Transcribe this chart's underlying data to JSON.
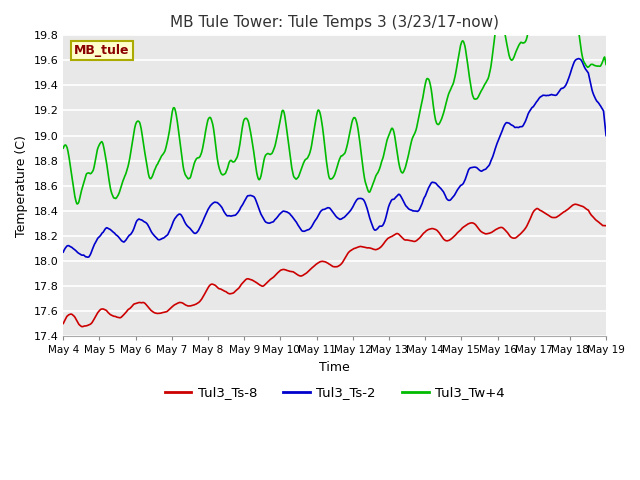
{
  "title": "MB Tule Tower: Tule Temps 3 (3/23/17-now)",
  "xlabel": "Time",
  "ylabel": "Temperature (C)",
  "ylim": [
    17.4,
    19.8
  ],
  "yticks": [
    17.4,
    17.6,
    17.8,
    18.0,
    18.2,
    18.4,
    18.6,
    18.8,
    19.0,
    19.2,
    19.4,
    19.6,
    19.8
  ],
  "xtick_labels": [
    "May 4",
    "May 5",
    "May 6",
    "May 7",
    "May 8",
    "May 9",
    "May 10",
    "May 11",
    "May 12",
    "May 13",
    "May 14",
    "May 15",
    "May 16",
    "May 17",
    "May 18",
    "May 19"
  ],
  "colors": {
    "red": "#cc0000",
    "blue": "#0000cc",
    "green": "#00bb00"
  },
  "bg_color": "#e8e8e8",
  "legend_box_facecolor": "#ffffcc",
  "legend_box_edgecolor": "#aaaa00",
  "legend_title": "MB_tule",
  "legend_entries": [
    "Tul3_Ts-8",
    "Tul3_Ts-2",
    "Tul3_Tw+4"
  ],
  "line_width": 1.2
}
